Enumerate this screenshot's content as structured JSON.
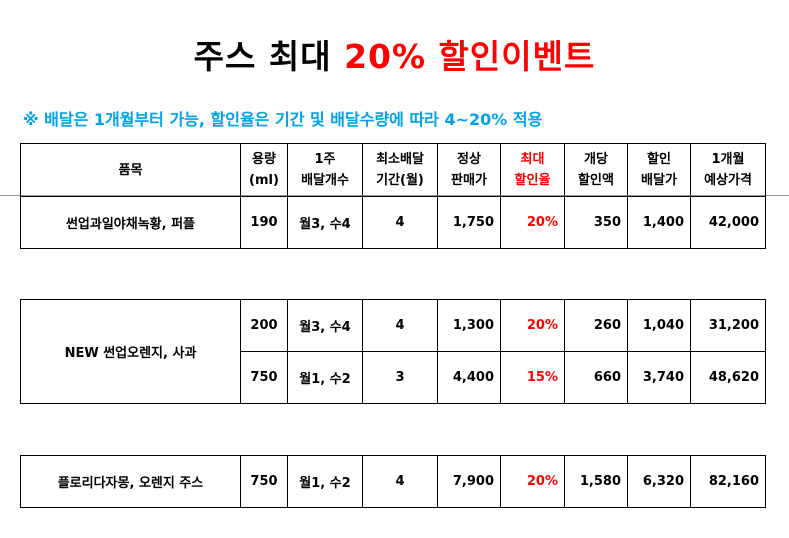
{
  "title": {
    "black": "주스 최대 ",
    "red": "20% 할인이벤트"
  },
  "notice": "※ 배달은 1개월부터 가능, 할인율은 기간 및 배달수량에 따라 4~20% 적용",
  "headers": {
    "item": "품목",
    "volume": [
      "용량",
      "(ml)"
    ],
    "weekly": [
      "1주",
      "배달개수"
    ],
    "min_period": [
      "최소배달",
      "기간(월)"
    ],
    "list_price": [
      "정상",
      "판매가"
    ],
    "max_discount": [
      "최대",
      "할인율"
    ],
    "unit_discount": [
      "개당",
      "할인액"
    ],
    "discount_price": [
      "할인",
      "배달가"
    ],
    "monthly": [
      "1개월",
      "예상가격"
    ]
  },
  "table1": {
    "rows": [
      {
        "item": "썬업과일야채녹황, 퍼플",
        "volume": "190",
        "weekly": "월3, 수4",
        "min_period": "4",
        "list_price": "1,750",
        "max_discount": "20%",
        "unit_discount": "350",
        "discount_price": "1,400",
        "monthly": "42,000"
      }
    ]
  },
  "table2": {
    "item": "NEW 썬업오렌지, 사과",
    "rows": [
      {
        "volume": "200",
        "weekly": "월3, 수4",
        "min_period": "4",
        "list_price": "1,300",
        "max_discount": "20%",
        "unit_discount": "260",
        "discount_price": "1,040",
        "monthly": "31,200"
      },
      {
        "volume": "750",
        "weekly": "월1, 수2",
        "min_period": "3",
        "list_price": "4,400",
        "max_discount": "15%",
        "unit_discount": "660",
        "discount_price": "3,740",
        "monthly": "48,620"
      }
    ]
  },
  "table3": {
    "rows": [
      {
        "item": "플로리다자몽, 오렌지 주스",
        "volume": "750",
        "weekly": "월1, 수2",
        "min_period": "4",
        "list_price": "7,900",
        "max_discount": "20%",
        "unit_discount": "1,580",
        "discount_price": "6,320",
        "monthly": "82,160"
      }
    ]
  },
  "colors": {
    "accent_red": "#ff0000",
    "notice_blue": "#00a2e8"
  }
}
